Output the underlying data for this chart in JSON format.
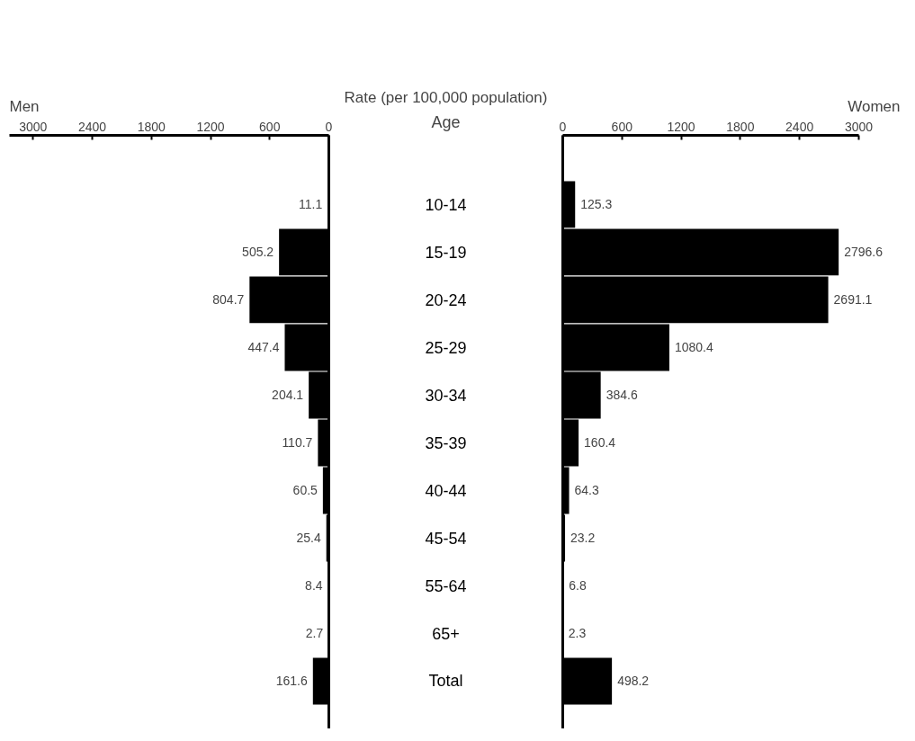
{
  "chart_data": [
    {
      "type": "bar",
      "orientation": "horizontal",
      "title": "Men",
      "xlabel": "Rate (per 100,000 population)",
      "ylabel": "Age",
      "categories": [
        "10-14",
        "15-19",
        "20-24",
        "25-29",
        "30-34",
        "35-39",
        "40-44",
        "45-54",
        "55-64",
        "65+",
        "Total"
      ],
      "values": [
        11.1,
        505.2,
        804.7,
        447.4,
        204.1,
        110.7,
        60.5,
        25.4,
        8.4,
        2.7,
        161.6
      ],
      "color": "#000000",
      "xlim": [
        3240,
        0
      ],
      "xticks": [
        3000,
        2400,
        1800,
        1200,
        600,
        0
      ],
      "data_labels": true
    },
    {
      "type": "bar",
      "orientation": "horizontal",
      "title": "Women",
      "categories": [
        "10-14",
        "15-19",
        "20-24",
        "25-29",
        "30-34",
        "35-39",
        "40-44",
        "45-54",
        "55-64",
        "65+",
        "Total"
      ],
      "values": [
        125.3,
        2796.6,
        2691.1,
        1080.4,
        384.6,
        160.4,
        64.3,
        23.2,
        6.8,
        2.3,
        498.2
      ],
      "color": "#000000",
      "xlim": [
        0,
        3000
      ],
      "xticks": [
        0,
        600,
        1200,
        1800,
        2400,
        3000
      ],
      "data_labels": true,
      "tick_labels": "x"
    }
  ]
}
